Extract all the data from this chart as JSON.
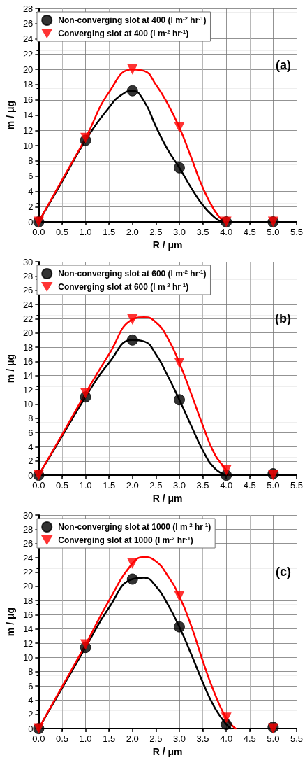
{
  "chart_data": [
    {
      "type": "scatter",
      "xlabel": "R / μm",
      "ylabel": "m / μg",
      "annotations": [
        "(a)"
      ],
      "grid": true,
      "legend": "top left",
      "xlim": [
        0,
        5.5
      ],
      "ylim": [
        0,
        28
      ],
      "xticks": [
        {
          "value": 0,
          "label": "0.0"
        },
        0.5,
        {
          "value": 1,
          "label": "1.0"
        },
        1.5,
        {
          "value": 2,
          "label": "2.0"
        },
        2.5,
        {
          "value": 3,
          "label": "3.0"
        },
        3.5,
        {
          "value": 4,
          "label": "4.0"
        },
        4.5,
        {
          "value": 5,
          "label": "5.0"
        },
        5.5
      ],
      "yticks": [
        0,
        2,
        4,
        6,
        8,
        10,
        12,
        14,
        16,
        18,
        20,
        22,
        24,
        26,
        28
      ],
      "series": [
        {
          "type": "line",
          "color": "#000000",
          "marker": "none",
          "line_style": "solid",
          "x": [
            0,
            0.5,
            1,
            1.5,
            1.75,
            2,
            2.25,
            2.5,
            2.75,
            3,
            3.25,
            3.5,
            3.75,
            3.9
          ],
          "values": [
            0,
            5.3,
            10.7,
            15,
            16.6,
            17.2,
            15.8,
            12.5,
            9.5,
            7.1,
            4.5,
            2.2,
            0.6,
            0
          ]
        },
        {
          "type": "line",
          "color": "#ff0000",
          "marker": "none",
          "line_style": "solid",
          "x": [
            0,
            0.5,
            1,
            1.5,
            2,
            2.25,
            2.5,
            2.75,
            3,
            3.25,
            3.5,
            3.75,
            3.95
          ],
          "values": [
            0,
            5.5,
            11,
            17,
            20,
            19.8,
            18,
            15.5,
            12.4,
            8.5,
            4.5,
            1.5,
            0
          ]
        },
        {
          "name": "Non-converging slot at 400 (l m$^{-2}$ hr$^{-1}$)",
          "color": "#000000",
          "marker": "circle",
          "x": [
            0,
            1,
            2,
            3,
            4,
            5
          ],
          "values": [
            0,
            10.7,
            17.2,
            7.1,
            0,
            0
          ]
        },
        {
          "name": "Converging slot at 400 (l m$^{-2}$ hr$^{-1}$)",
          "color": "#ff0000",
          "marker": "triangle",
          "x": [
            0,
            1,
            2,
            3,
            4,
            5
          ],
          "values": [
            0,
            11,
            20,
            12.4,
            0,
            0
          ]
        }
      ]
    },
    {
      "type": "scatter",
      "xlabel": "R / μm",
      "ylabel": "m / μg",
      "annotations": [
        "(b)"
      ],
      "grid": true,
      "legend": "top left",
      "xlim": [
        0,
        5.5
      ],
      "ylim": [
        0,
        30
      ],
      "xticks": [
        {
          "value": 0,
          "label": "0.0"
        },
        0.5,
        {
          "value": 1,
          "label": "1.0"
        },
        1.5,
        {
          "value": 2,
          "label": "2.0"
        },
        2.5,
        {
          "value": 3,
          "label": "3.0"
        },
        3.5,
        {
          "value": 4,
          "label": "4.0"
        },
        4.5,
        {
          "value": 5,
          "label": "5.0"
        },
        5.5
      ],
      "yticks": [
        0,
        2,
        4,
        6,
        8,
        10,
        12,
        14,
        16,
        18,
        20,
        22,
        24,
        26,
        28,
        30
      ],
      "series": [
        {
          "type": "line",
          "color": "#000000",
          "marker": "none",
          "line_style": "solid",
          "x": [
            0,
            0.5,
            1,
            1.5,
            2,
            2.25,
            2.5,
            2.75,
            3,
            3.25,
            3.5,
            3.75,
            4
          ],
          "values": [
            0,
            5.5,
            11,
            15.8,
            19,
            18.8,
            17,
            14,
            10.6,
            7,
            3.5,
            1,
            0
          ]
        },
        {
          "type": "line",
          "color": "#ff0000",
          "marker": "none",
          "line_style": "solid",
          "x": [
            0,
            0.5,
            1,
            1.5,
            2,
            2.25,
            2.5,
            2.75,
            3,
            3.25,
            3.5,
            3.75,
            4,
            4.05
          ],
          "values": [
            0,
            5.7,
            11.5,
            17,
            21.9,
            22.2,
            21.5,
            19.3,
            15.8,
            11.5,
            7,
            3,
            0.7,
            0
          ]
        },
        {
          "name": "Non-converging slot at 600 (l m$^{-2}$ hr$^{-1}$)",
          "color": "#000000",
          "marker": "circle",
          "x": [
            0,
            1,
            2,
            3,
            4,
            5
          ],
          "values": [
            0,
            11,
            19,
            10.6,
            0,
            0.2
          ]
        },
        {
          "name": "Converging slot at 600 (l m$^{-2}$ hr$^{-1}$)",
          "color": "#ff0000",
          "marker": "triangle",
          "x": [
            0,
            1,
            2,
            3,
            4,
            5
          ],
          "values": [
            0,
            11.5,
            21.9,
            15.8,
            0.7,
            0
          ]
        }
      ]
    },
    {
      "type": "scatter",
      "xlabel": "R / μm",
      "ylabel": "m / μg",
      "annotations": [
        "(c)"
      ],
      "grid": true,
      "legend": "top left",
      "xlim": [
        0,
        5.5
      ],
      "ylim": [
        0,
        30
      ],
      "xticks": [
        {
          "value": 0,
          "label": "0.0"
        },
        0.5,
        {
          "value": 1,
          "label": "1.0"
        },
        1.5,
        {
          "value": 2,
          "label": "2.0"
        },
        2.5,
        {
          "value": 3,
          "label": "3.0"
        },
        3.5,
        {
          "value": 4,
          "label": "4.0"
        },
        4.5,
        {
          "value": 5,
          "label": "5.0"
        },
        5.5
      ],
      "yticks": [
        0,
        2,
        4,
        6,
        8,
        10,
        12,
        14,
        16,
        18,
        20,
        22,
        24,
        26,
        28,
        30
      ],
      "series": [
        {
          "type": "line",
          "color": "#000000",
          "marker": "none",
          "line_style": "solid",
          "x": [
            0,
            0.5,
            1,
            1.5,
            2,
            2.25,
            2.5,
            2.75,
            3,
            3.25,
            3.5,
            3.75,
            4,
            4.1
          ],
          "values": [
            0,
            5.7,
            11.4,
            17,
            21,
            21.2,
            20,
            17.5,
            14.3,
            10.5,
            6.5,
            3,
            0.6,
            0
          ]
        },
        {
          "type": "line",
          "color": "#ff0000",
          "marker": "none",
          "line_style": "solid",
          "x": [
            0,
            0.5,
            1,
            1.5,
            2,
            2.25,
            2.5,
            2.75,
            3,
            3.25,
            3.5,
            3.75,
            4,
            4.2
          ],
          "values": [
            0,
            5.9,
            11.8,
            18,
            23.2,
            24.1,
            23.5,
            21.5,
            18.6,
            14.5,
            9.5,
            5,
            1.5,
            0
          ]
        },
        {
          "name": "Non-converging slot at 1000 (l m$^{-2}$ hr$^{-1}$)",
          "color": "#000000",
          "marker": "circle",
          "x": [
            0,
            1,
            2,
            3,
            4,
            5
          ],
          "values": [
            0,
            11.4,
            21,
            14.3,
            0.6,
            0.2
          ]
        },
        {
          "name": "Converging slot at 1000 (l m$^{-2}$ hr$^{-1}$)",
          "color": "#ff0000",
          "marker": "triangle",
          "x": [
            0,
            1,
            2,
            3,
            4,
            5
          ],
          "values": [
            0,
            11.8,
            23.2,
            18.6,
            1.5,
            0
          ]
        }
      ]
    }
  ]
}
